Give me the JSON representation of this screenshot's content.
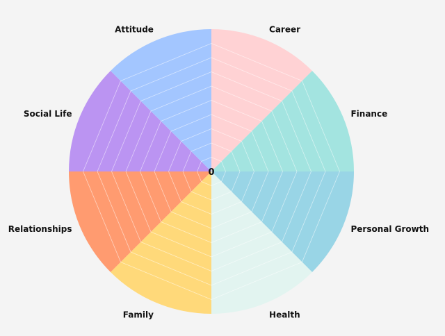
{
  "chart_data": {
    "type": "pie",
    "subtype": "wheel-of-life",
    "title": "",
    "center_label": "0",
    "segments": [
      {
        "name": "Career",
        "value": 0,
        "color": "#ffd2d4"
      },
      {
        "name": "Finance",
        "value": 0,
        "color": "#a3e4e0"
      },
      {
        "name": "Personal Growth",
        "value": 0,
        "color": "#99d5e6"
      },
      {
        "name": "Health",
        "value": 0,
        "color": "#e2f4f0"
      },
      {
        "name": "Family",
        "value": 0,
        "color": "#ffd97a"
      },
      {
        "name": "Relationships",
        "value": 0,
        "color": "#ff9b70"
      },
      {
        "name": "Social Life",
        "value": 0,
        "color": "#bb94f2"
      },
      {
        "name": "Attitude",
        "value": 0,
        "color": "#a3c6ff"
      }
    ],
    "scale_max": 10,
    "grid": true
  }
}
